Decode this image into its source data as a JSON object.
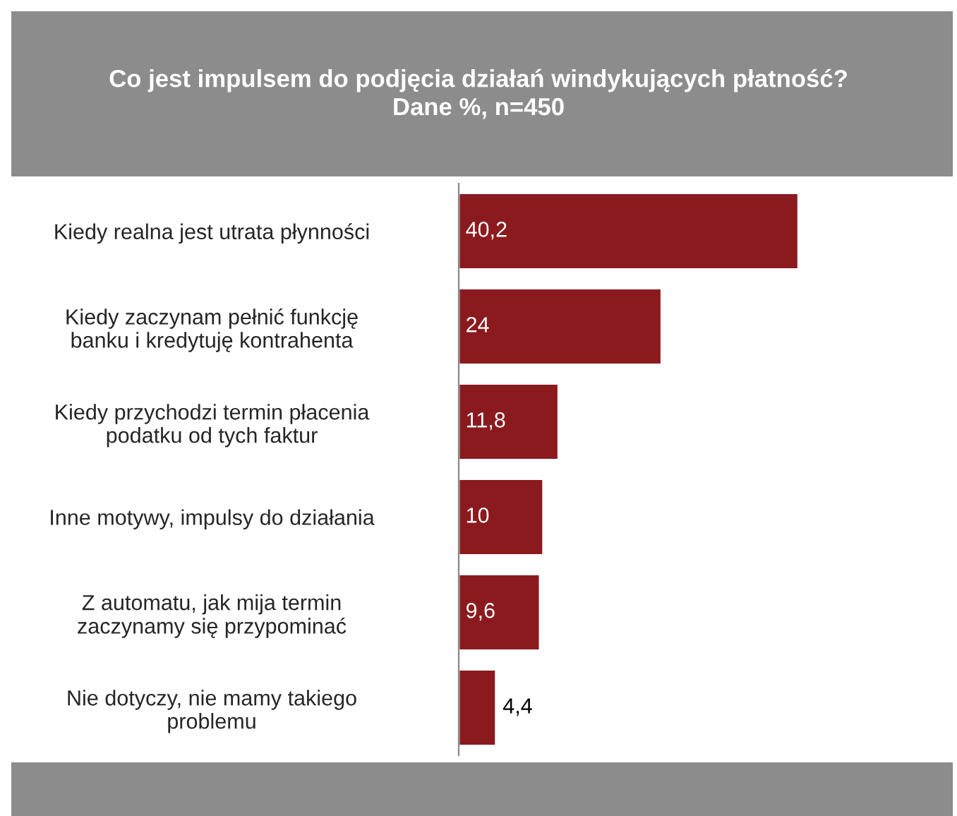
{
  "chart_data": {
    "type": "bar",
    "orientation": "horizontal",
    "title": "Co jest impulsem do podjęcia działań windykujących płatność?\nDane %, n=450",
    "categories": [
      "Kiedy realna jest utrata płynności",
      "Kiedy zaczynam pełnić funkcję\nbanku i kredytuję kontrahenta",
      "Kiedy przychodzi termin płacenia\npodatku od tych faktur",
      "Inne motywy, impulsy do działania",
      "Z automatu, jak mija termin\nzaczynamy się przypominać",
      "Nie dotyczy, nie mamy takiego\nproblemu"
    ],
    "values": [
      40.2,
      24,
      11.8,
      10,
      9.6,
      4.4
    ],
    "value_labels": [
      "40,2",
      "24",
      "11,8",
      "10",
      "9,6",
      "4,4"
    ],
    "color": "#8b1a1f",
    "grid": false,
    "legend": false
  }
}
